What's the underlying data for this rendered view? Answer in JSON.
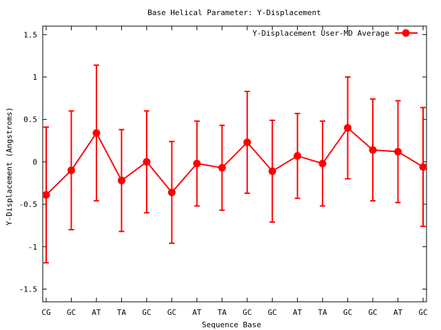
{
  "chart_data": {
    "type": "line",
    "title": "Base  Helical Parameter: Y-Displacement",
    "xlabel": "Sequence Base",
    "ylabel": "Y-Displacement (Angstroms)",
    "ylim": [
      -1.65,
      1.6
    ],
    "yticks": [
      -1.5,
      -1,
      -0.5,
      0,
      0.5,
      1,
      1.5
    ],
    "ytick_labels": [
      "-1.5",
      "-1",
      "-0.5",
      "0",
      "0.5",
      "1",
      "1.5"
    ],
    "categories": [
      "CG",
      "GC",
      "AT",
      "TA",
      "GC",
      "GC",
      "AT",
      "TA",
      "GC",
      "GC",
      "AT",
      "TA",
      "GC",
      "GC",
      "AT",
      "GC"
    ],
    "series": [
      {
        "name": "Y-Displacement User-MD Average",
        "color": "#ff0000",
        "values": [
          -0.39,
          -0.1,
          0.34,
          -0.22,
          0.0,
          -0.36,
          -0.02,
          -0.07,
          0.23,
          -0.11,
          0.07,
          -0.02,
          0.4,
          0.14,
          0.12,
          -0.06
        ],
        "errors": [
          0.8,
          0.7,
          0.8,
          0.6,
          0.6,
          0.6,
          0.5,
          0.5,
          0.6,
          0.6,
          0.5,
          0.5,
          0.6,
          0.6,
          0.6,
          0.7
        ]
      }
    ],
    "grid": false,
    "legend_position": "top-right"
  }
}
